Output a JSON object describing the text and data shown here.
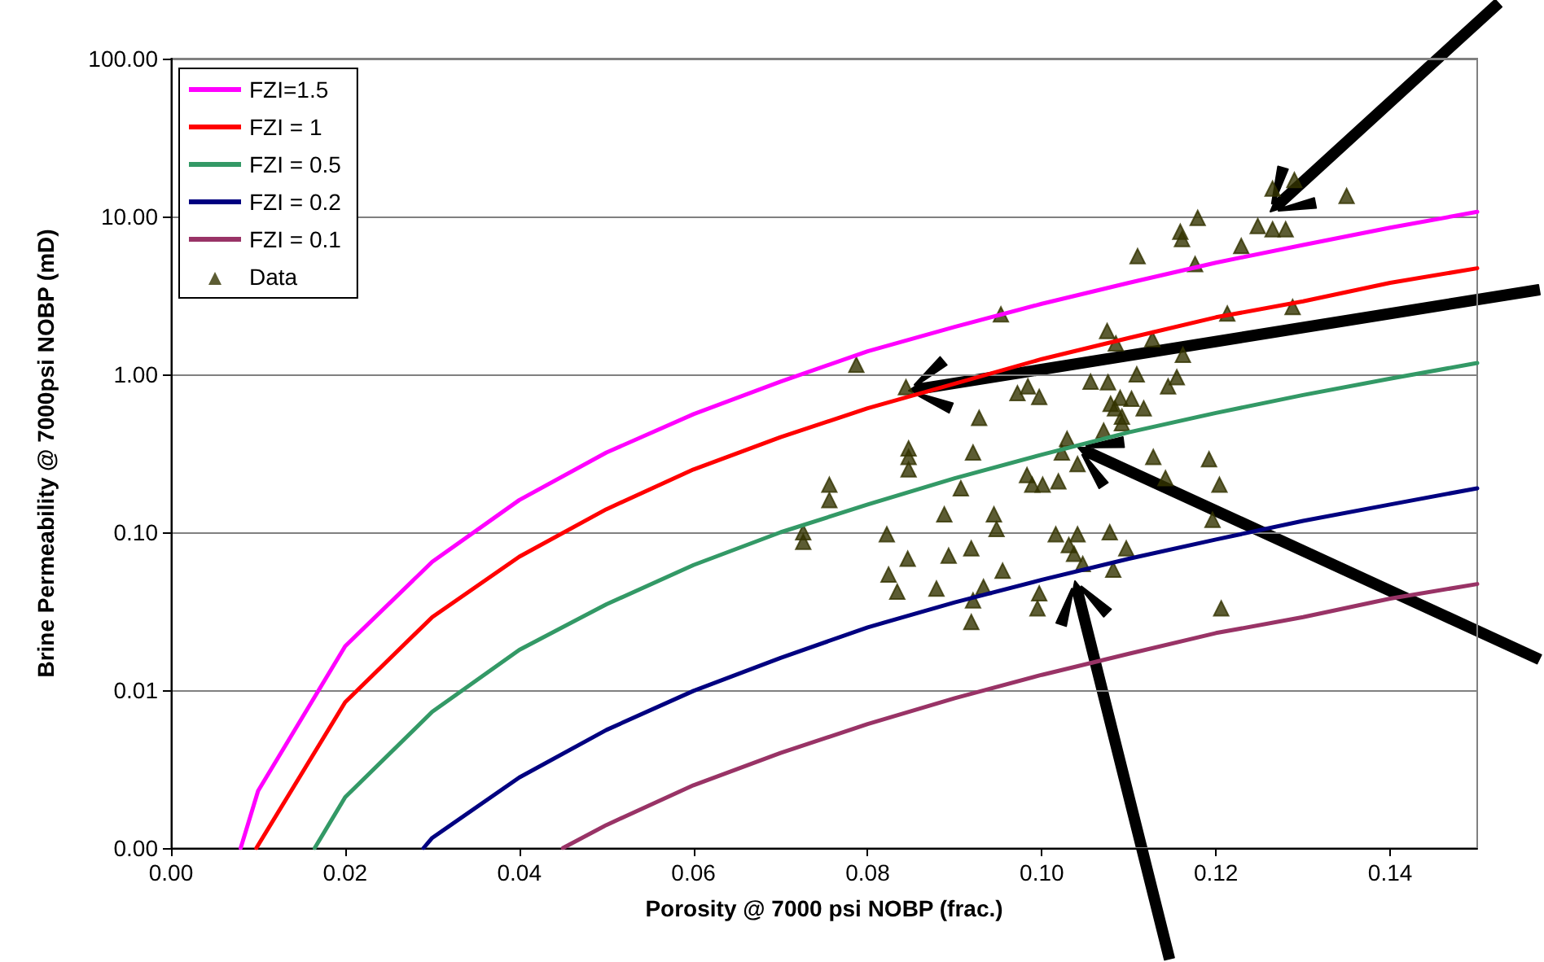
{
  "chart_data": {
    "type": "line",
    "xlabel": "Porosity @ 7000 psi NOBP (frac.)",
    "ylabel": "Brine Permeability @ 7000psi NOBP (mD)",
    "xlim": [
      0,
      0.15
    ],
    "xticks": [
      {
        "value": 0,
        "label": "0.00"
      },
      {
        "value": 0.02,
        "label": "0.02"
      },
      {
        "value": 0.04,
        "label": "0.04"
      },
      {
        "value": 0.06,
        "label": "0.06"
      },
      {
        "value": 0.08,
        "label": "0.08"
      },
      {
        "value": 0.1,
        "label": "0.10"
      },
      {
        "value": 0.12,
        "label": "0.12"
      },
      {
        "value": 0.14,
        "label": "0.14"
      }
    ],
    "ylim": [
      0.001,
      100
    ],
    "yticks": [
      {
        "value": 0.001,
        "label": "0.00"
      },
      {
        "value": 0.01,
        "label": "0.01"
      },
      {
        "value": 0.1,
        "label": "0.10"
      },
      {
        "value": 1,
        "label": "1.00"
      },
      {
        "value": 10,
        "label": "10.00"
      },
      {
        "value": 100,
        "label": "100.00"
      }
    ],
    "log": "y",
    "grid": "y",
    "legend": "top left",
    "series": [
      {
        "name": "FZI=1.5",
        "marker": "none",
        "color": "#ff00ff",
        "x": [
          0.008,
          0.01,
          0.02,
          0.03,
          0.04,
          0.05,
          0.06,
          0.07,
          0.08,
          0.09,
          0.1,
          0.11,
          0.12,
          0.13,
          0.14,
          0.15
        ],
        "values": [
          0.001,
          0.0023,
          0.019,
          0.065,
          0.16,
          0.32,
          0.56,
          0.9,
          1.4,
          2.0,
          2.8,
          3.8,
          5.1,
          6.6,
          8.5,
          10.7
        ]
      },
      {
        "name": "FZI = 1",
        "marker": "none",
        "color": "#ff0000",
        "x": [
          0.0098,
          0.02,
          0.03,
          0.04,
          0.05,
          0.06,
          0.07,
          0.08,
          0.1,
          0.11,
          0.12,
          0.13,
          0.14,
          0.15
        ],
        "values": [
          0.001,
          0.0084,
          0.029,
          0.07,
          0.14,
          0.25,
          0.4,
          0.61,
          1.25,
          1.7,
          2.3,
          2.9,
          3.8,
          4.7
        ]
      },
      {
        "name": "FZI = 0.5",
        "marker": "none",
        "color": "#339966",
        "x": [
          0.0165,
          0.02,
          0.03,
          0.04,
          0.05,
          0.06,
          0.07,
          0.08,
          0.09,
          0.1,
          0.11,
          0.12,
          0.13,
          0.14,
          0.15
        ],
        "values": [
          0.001,
          0.0021,
          0.0073,
          0.018,
          0.035,
          0.062,
          0.1,
          0.15,
          0.22,
          0.31,
          0.43,
          0.57,
          0.74,
          0.94,
          1.18
        ]
      },
      {
        "name": "FZI = 0.2",
        "marker": "none",
        "color": "#000080",
        "x": [
          0.029,
          0.03,
          0.04,
          0.05,
          0.06,
          0.07,
          0.08,
          0.09,
          0.1,
          0.11,
          0.12,
          0.13,
          0.14,
          0.15
        ],
        "values": [
          0.001,
          0.00116,
          0.0028,
          0.0056,
          0.0099,
          0.016,
          0.025,
          0.036,
          0.05,
          0.068,
          0.09,
          0.118,
          0.15,
          0.19
        ]
      },
      {
        "name": "FZI = 0.1",
        "marker": "none",
        "color": "#993366",
        "x": [
          0.045,
          0.05,
          0.06,
          0.07,
          0.08,
          0.09,
          0.1,
          0.11,
          0.12,
          0.13,
          0.14,
          0.15
        ],
        "values": [
          0.001,
          0.0014,
          0.0025,
          0.004,
          0.0061,
          0.0089,
          0.0125,
          0.017,
          0.023,
          0.029,
          0.038,
          0.047
        ]
      },
      {
        "name": "Data",
        "type": "scatter",
        "marker": "triangle",
        "color": "#333300",
        "x": [
          0.1265,
          0.129,
          0.135,
          0.1179,
          0.1159,
          0.1161,
          0.1248,
          0.1265,
          0.128,
          0.1229,
          0.111,
          0.1176,
          0.0953,
          0.0787,
          0.0844,
          0.1075,
          0.1085,
          0.1127,
          0.1213,
          0.1288,
          0.1162,
          0.1155,
          0.1145,
          0.1056,
          0.1076,
          0.1109,
          0.0972,
          0.0984,
          0.0997,
          0.0928,
          0.1079,
          0.109,
          0.1103,
          0.1084,
          0.1092,
          0.1092,
          0.1117,
          0.1071,
          0.1029,
          0.1023,
          0.1041,
          0.0921,
          0.0847,
          0.0847,
          0.0847,
          0.0756,
          0.0756,
          0.0726,
          0.0726,
          0.0822,
          0.0888,
          0.0907,
          0.0945,
          0.0948,
          0.0983,
          0.0989,
          0.1001,
          0.1019,
          0.1128,
          0.1142,
          0.1192,
          0.1204,
          0.1196,
          0.1016,
          0.1041,
          0.1078,
          0.1031,
          0.1037,
          0.1047,
          0.1097,
          0.1082,
          0.0919,
          0.0846,
          0.0893,
          0.0824,
          0.0834,
          0.0879,
          0.0955,
          0.0933,
          0.0921,
          0.0919,
          0.0997,
          0.0995,
          0.1206
        ],
        "values": [
          15,
          17,
          13.5,
          9.8,
          8.0,
          7.2,
          8.7,
          8.3,
          8.3,
          6.5,
          5.6,
          5.0,
          2.4,
          1.15,
          0.83,
          1.88,
          1.57,
          1.67,
          2.43,
          2.67,
          1.33,
          0.96,
          0.84,
          0.9,
          0.89,
          1.0,
          0.76,
          0.84,
          0.72,
          0.53,
          0.65,
          0.71,
          0.7,
          0.61,
          0.54,
          0.49,
          0.61,
          0.44,
          0.39,
          0.32,
          0.27,
          0.32,
          0.34,
          0.3,
          0.25,
          0.2,
          0.16,
          0.1,
          0.087,
          0.097,
          0.13,
          0.19,
          0.13,
          0.105,
          0.23,
          0.2,
          0.2,
          0.21,
          0.3,
          0.22,
          0.29,
          0.2,
          0.12,
          0.097,
          0.097,
          0.1,
          0.083,
          0.073,
          0.063,
          0.079,
          0.058,
          0.079,
          0.068,
          0.071,
          0.054,
          0.042,
          0.044,
          0.057,
          0.045,
          0.037,
          0.027,
          0.041,
          0.033,
          0.033
        ]
      }
    ]
  }
}
